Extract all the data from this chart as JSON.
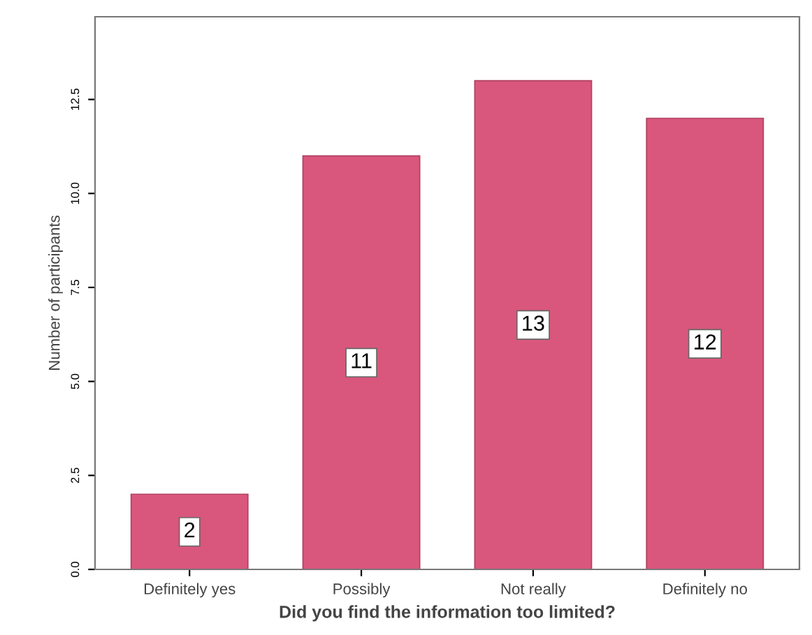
{
  "chart_data": {
    "type": "bar",
    "xlabel": "Did you find the information too limited?",
    "ylabel": "Number of participants",
    "categories": [
      "Definitely yes",
      "Possibly",
      "Not really",
      "Definitely no"
    ],
    "values": [
      2,
      11,
      13,
      12
    ],
    "color": "#d9577c",
    "data_labels": true,
    "ylim": [
      0,
      14.7
    ],
    "yticks": [
      {
        "value": 0,
        "label": "0.0"
      },
      {
        "value": 2.5,
        "label": "2.5"
      },
      {
        "value": 5,
        "label": "5.0"
      },
      {
        "value": 7.5,
        "label": "7.5"
      },
      {
        "value": 10,
        "label": "10.0"
      },
      {
        "value": 12.5,
        "label": "12.5"
      }
    ],
    "grid": false
  }
}
